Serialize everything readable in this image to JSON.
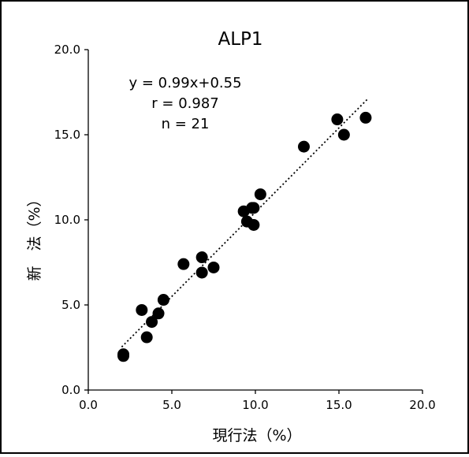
{
  "chart_data": {
    "type": "scatter",
    "title": "ALP1",
    "xlabel": "現行法（%）",
    "ylabel": "新　法（%）",
    "xlim": [
      0,
      20
    ],
    "ylim": [
      0,
      20
    ],
    "xticks": [
      "0.0",
      "5.0",
      "10.0",
      "15.0",
      "20.0"
    ],
    "yticks": [
      "0.0",
      "5.0",
      "10.0",
      "15.0",
      "20.0"
    ],
    "grid": false,
    "legend": "none",
    "annotations": [
      "y = 0.99x+0.55",
      "r = 0.987",
      "n = 21"
    ],
    "trendline": {
      "slope": 0.99,
      "intercept": 0.55,
      "x_range": [
        2.0,
        16.7
      ],
      "style": "dotted"
    },
    "points": [
      {
        "x": 2.1,
        "y": 2.0
      },
      {
        "x": 2.1,
        "y": 2.1
      },
      {
        "x": 3.2,
        "y": 4.7
      },
      {
        "x": 3.5,
        "y": 3.1
      },
      {
        "x": 3.8,
        "y": 4.0
      },
      {
        "x": 4.2,
        "y": 4.5
      },
      {
        "x": 4.5,
        "y": 5.3
      },
      {
        "x": 5.7,
        "y": 7.4
      },
      {
        "x": 6.8,
        "y": 7.8
      },
      {
        "x": 6.8,
        "y": 6.9
      },
      {
        "x": 7.5,
        "y": 7.2
      },
      {
        "x": 9.3,
        "y": 10.5
      },
      {
        "x": 9.5,
        "y": 9.9
      },
      {
        "x": 9.8,
        "y": 10.7
      },
      {
        "x": 9.9,
        "y": 10.7
      },
      {
        "x": 9.9,
        "y": 9.7
      },
      {
        "x": 10.3,
        "y": 11.5
      },
      {
        "x": 12.9,
        "y": 14.3
      },
      {
        "x": 14.9,
        "y": 15.9
      },
      {
        "x": 15.3,
        "y": 15.0
      },
      {
        "x": 16.6,
        "y": 16.0
      }
    ]
  },
  "colors": {
    "points": "#000000",
    "trendline": "#000000",
    "axes": "#000000",
    "frame": "#000000",
    "background": "#ffffff"
  }
}
